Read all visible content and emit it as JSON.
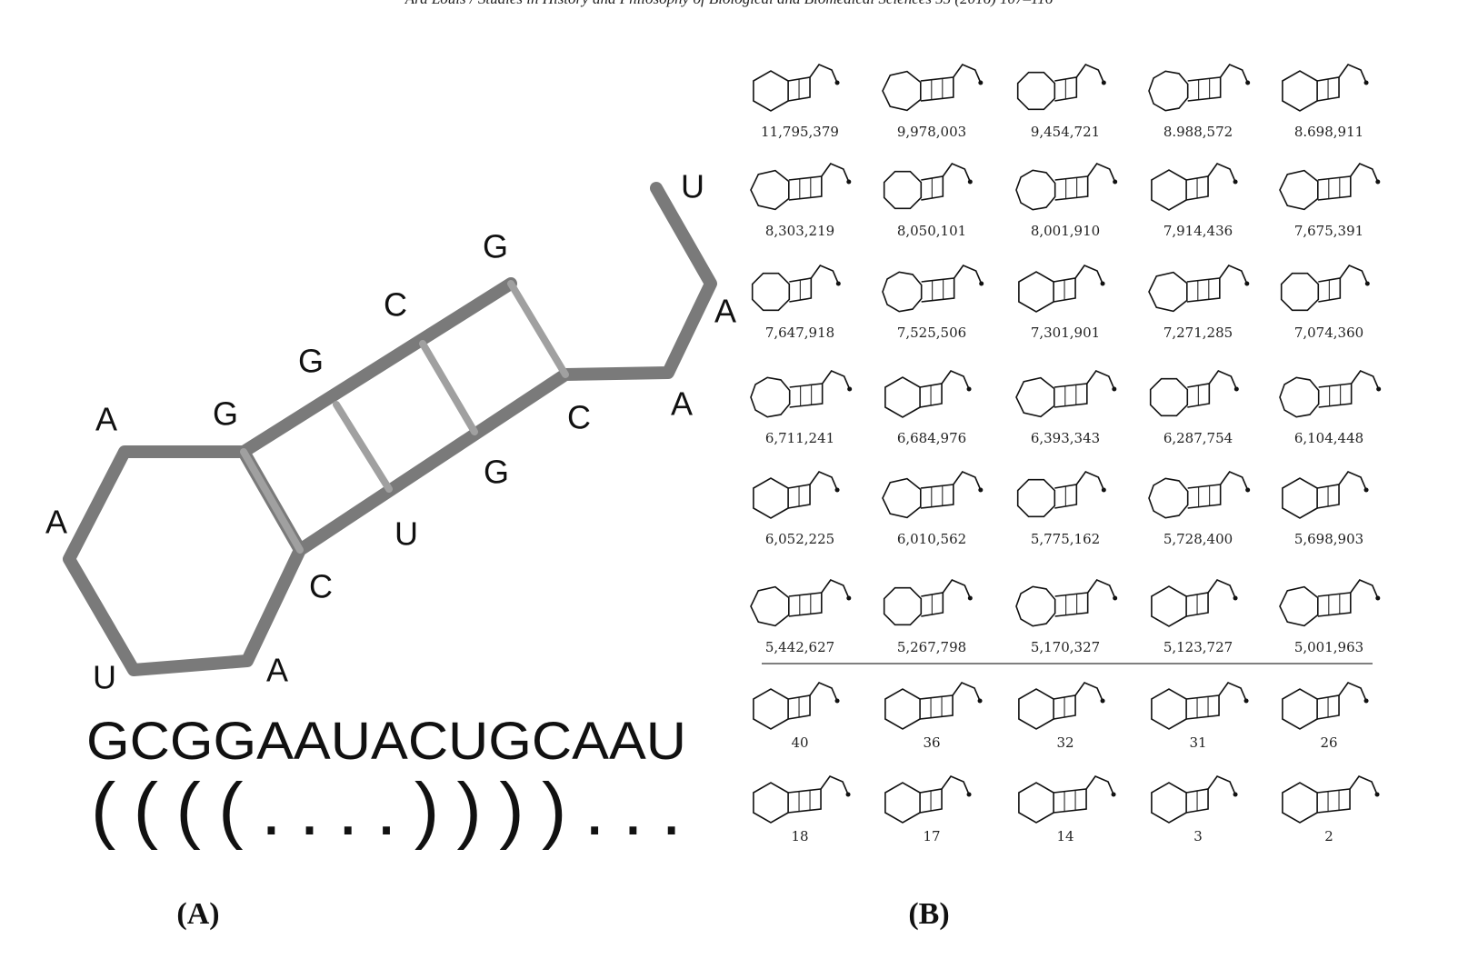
{
  "header": "Ard Louis / Studies in History and Philosophy of Biological and Biomedical Sciences 55 (2016) 107–116",
  "panel_a": {
    "labels": [
      "U",
      "A",
      "A",
      "C",
      "G",
      "U",
      "C",
      "A",
      "U",
      "A",
      "A",
      "G",
      "G",
      "C",
      "G"
    ],
    "sequence": "GCGGAAUACUGCAAU",
    "structure": "((((....))))...",
    "caption": "(A)"
  },
  "panel_b": {
    "counts": [
      "11,795,379",
      "9,978,003",
      "9,454,721",
      "8.988,572",
      "8.698,911",
      "8,303,219",
      "8,050,101",
      "8,001,910",
      "7,914,436",
      "7,675,391",
      "7,647,918",
      "7,525,506",
      "7,301,901",
      "7,271,285",
      "7,074,360",
      "6,711,241",
      "6,684,976",
      "6,393,343",
      "6,287,754",
      "6,104,448",
      "6,052,225",
      "6,010,562",
      "5,775,162",
      "5,728,400",
      "5,698,903",
      "5,442,627",
      "5,267,798",
      "5,170,327",
      "5,123,727",
      "5,001,963"
    ],
    "small_counts": [
      "40",
      "36",
      "32",
      "31",
      "26",
      "18",
      "17",
      "14",
      "3",
      "2"
    ],
    "caption": "(B)"
  }
}
